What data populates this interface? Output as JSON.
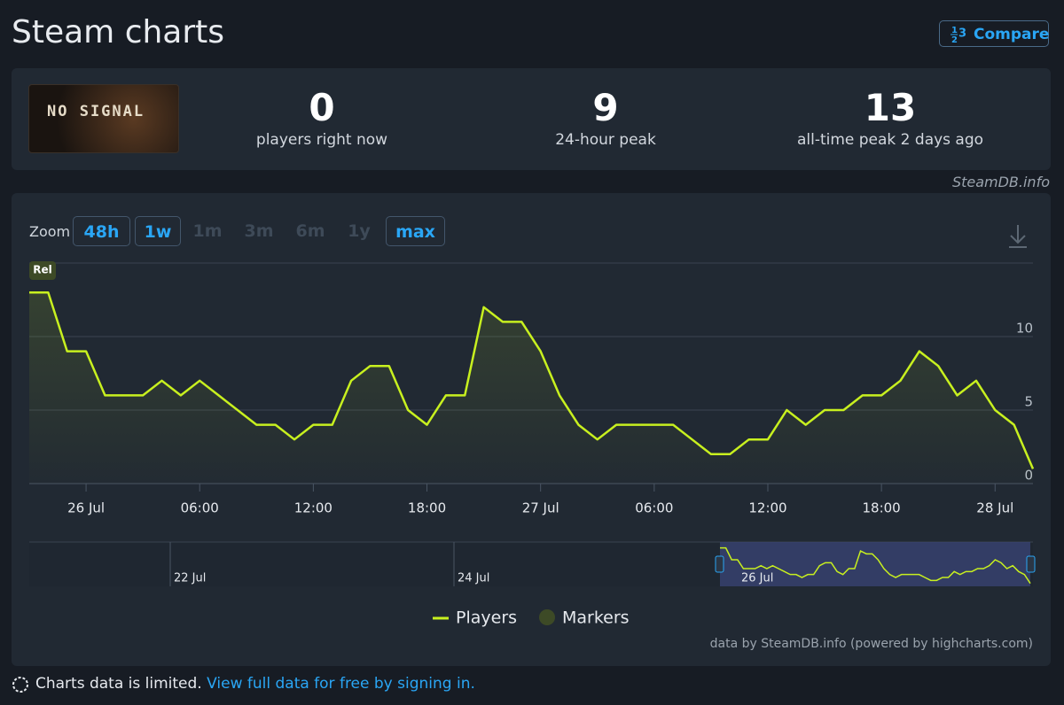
{
  "header": {
    "title": "Steam charts",
    "compare": "Compare"
  },
  "game": {
    "name": "NO SIGNAL"
  },
  "stats": [
    {
      "value": 0,
      "label": "players right now"
    },
    {
      "value": 9,
      "label": "24-hour peak"
    },
    {
      "value": 13,
      "label": "all-time peak 2 days ago"
    }
  ],
  "source": "SteamDB.info",
  "zoom": {
    "label": "Zoom",
    "buttons": [
      "48h",
      "1w",
      "1m",
      "3m",
      "6m",
      "1y",
      "max"
    ]
  },
  "chart_data": {
    "type": "line",
    "categories": [
      null,
      null,
      null,
      "26 Jul",
      null,
      null,
      null,
      null,
      null,
      "06:00",
      null,
      null,
      null,
      null,
      null,
      "12:00",
      null,
      null,
      null,
      null,
      null,
      "18:00",
      null,
      null,
      null,
      null,
      null,
      "27 Jul",
      null,
      null,
      null,
      null,
      null,
      "06:00",
      null,
      null,
      null,
      null,
      null,
      "12:00",
      null,
      null,
      null,
      null,
      null,
      "18:00",
      null,
      null,
      null,
      null,
      null,
      "28 Jul",
      null,
      null
    ],
    "series": [
      {
        "name": "Players",
        "color": "#c8f01f",
        "values": [
          13,
          13,
          9,
          9,
          6,
          6,
          6,
          7,
          6,
          7,
          6,
          5,
          4,
          4,
          3,
          4,
          4,
          7,
          8,
          8,
          5,
          4,
          6,
          6,
          12,
          11,
          11,
          9,
          6,
          4,
          3,
          4,
          4,
          4,
          4,
          3,
          2,
          2,
          3,
          3,
          5,
          4,
          5,
          5,
          6,
          6,
          7,
          9,
          8,
          6,
          7,
          5,
          4,
          1
        ]
      }
    ],
    "markers": {
      "name": "Markers",
      "color": "#3d4a26",
      "items": [
        {
          "label": "Rel",
          "index": 0
        }
      ]
    },
    "ylim": [
      0,
      15
    ],
    "yticks": [
      0,
      5,
      10
    ],
    "grid": true,
    "navigator": {
      "labels": [
        "22 Jul",
        "24 Jul",
        "26 Jul"
      ]
    },
    "credits": "data by SteamDB.info (powered by highcharts.com)"
  },
  "footer": {
    "text": "Charts data is limited.",
    "link": "View full data for free by signing in."
  }
}
